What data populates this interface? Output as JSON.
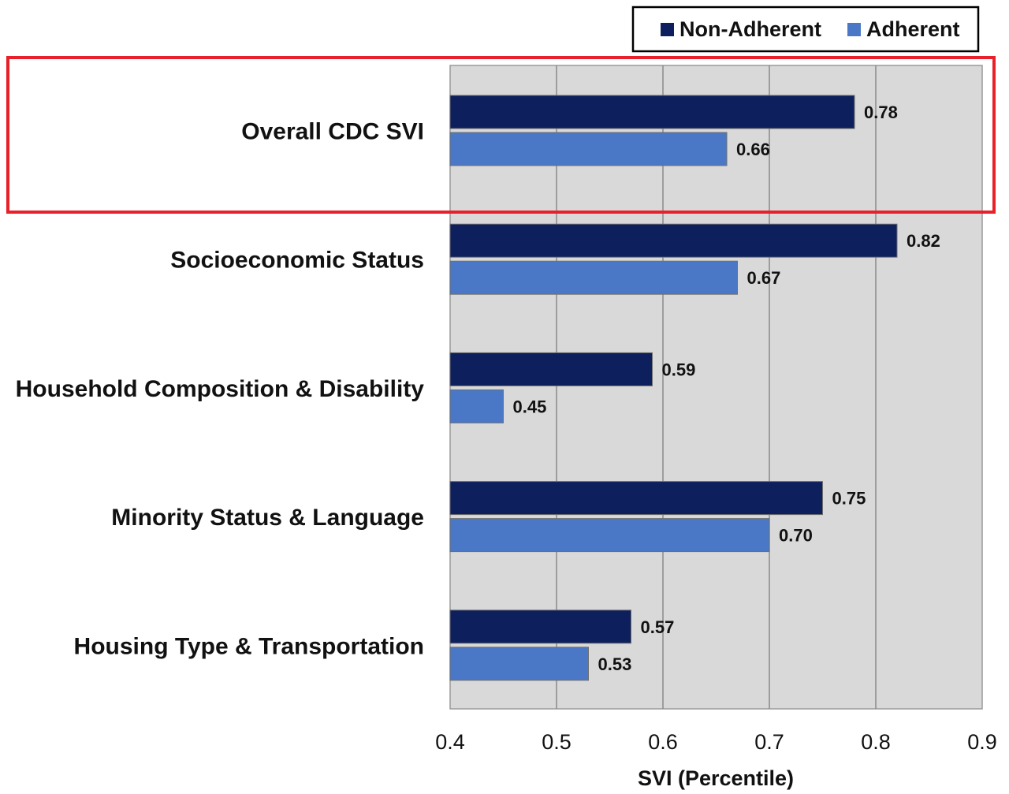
{
  "chart_data": {
    "type": "bar",
    "orientation": "horizontal",
    "categories": [
      "Overall CDC SVI",
      "Socioeconomic Status",
      "Household Composition & Disability",
      "Minority Status & Language",
      "Housing Type & Transportation"
    ],
    "series": [
      {
        "name": "Non-Adherent",
        "color": "#0d1f5c",
        "values": [
          0.78,
          0.82,
          0.59,
          0.75,
          0.57
        ],
        "labels": [
          "0.78",
          "0.82",
          "0.59",
          "0.75",
          "0.57"
        ]
      },
      {
        "name": "Adherent",
        "color": "#4a78c6",
        "values": [
          0.66,
          0.67,
          0.45,
          0.7,
          0.53
        ],
        "labels": [
          "0.66",
          "0.67",
          "0.45",
          "0.70",
          "0.53"
        ]
      }
    ],
    "xlabel": "SVI (Percentile)",
    "ylabel": "",
    "xlim": [
      0.4,
      0.9
    ],
    "xticks": [
      "0.4",
      "0.5",
      "0.6",
      "0.7",
      "0.8",
      "0.9"
    ],
    "grid": true,
    "legend_position": "top-right",
    "highlight": {
      "category": "Overall CDC SVI",
      "color": "#e8202a"
    },
    "plot_background": "#d9d9d9"
  }
}
